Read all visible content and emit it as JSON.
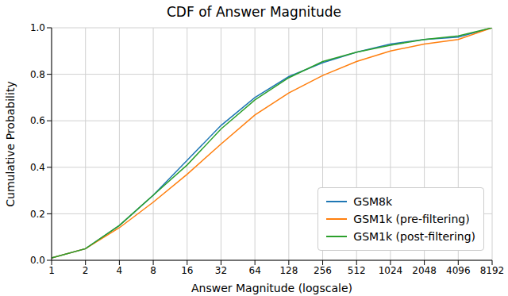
{
  "chart_data": {
    "type": "line",
    "title": "CDF of Answer Magnitude",
    "x_label": "Answer Magnitude (logscale)",
    "y_label": "Cumulative Probability",
    "x": [
      1,
      2,
      4,
      8,
      16,
      32,
      64,
      128,
      256,
      512,
      1024,
      2048,
      4096,
      8192
    ],
    "series": [
      {
        "name": "GSM8k",
        "color": "#1f77b4",
        "values": [
          0.01,
          0.05,
          0.15,
          0.28,
          0.43,
          0.58,
          0.7,
          0.79,
          0.85,
          0.895,
          0.93,
          0.95,
          0.96,
          1.0
        ]
      },
      {
        "name": "GSM1k (pre-filtering)",
        "color": "#ff7f0e",
        "values": [
          0.01,
          0.05,
          0.14,
          0.25,
          0.37,
          0.5,
          0.625,
          0.72,
          0.795,
          0.855,
          0.9,
          0.93,
          0.95,
          1.0
        ]
      },
      {
        "name": "GSM1k (post-filtering)",
        "color": "#2ca02c",
        "values": [
          0.01,
          0.05,
          0.15,
          0.28,
          0.41,
          0.565,
          0.69,
          0.785,
          0.855,
          0.895,
          0.925,
          0.95,
          0.965,
          1.0
        ]
      }
    ],
    "xlim": [
      1,
      8192
    ],
    "ylim": [
      0,
      1
    ],
    "xticks": [
      1,
      2,
      4,
      8,
      16,
      32,
      64,
      128,
      256,
      512,
      1024,
      2048,
      4096,
      8192
    ],
    "yticks": [
      {
        "value": 0,
        "label": "0.0"
      },
      0.2,
      0.4,
      0.6,
      0.8,
      {
        "value": 1,
        "label": "1.0"
      }
    ],
    "log": "x",
    "grid": true,
    "legend": "lower right"
  }
}
